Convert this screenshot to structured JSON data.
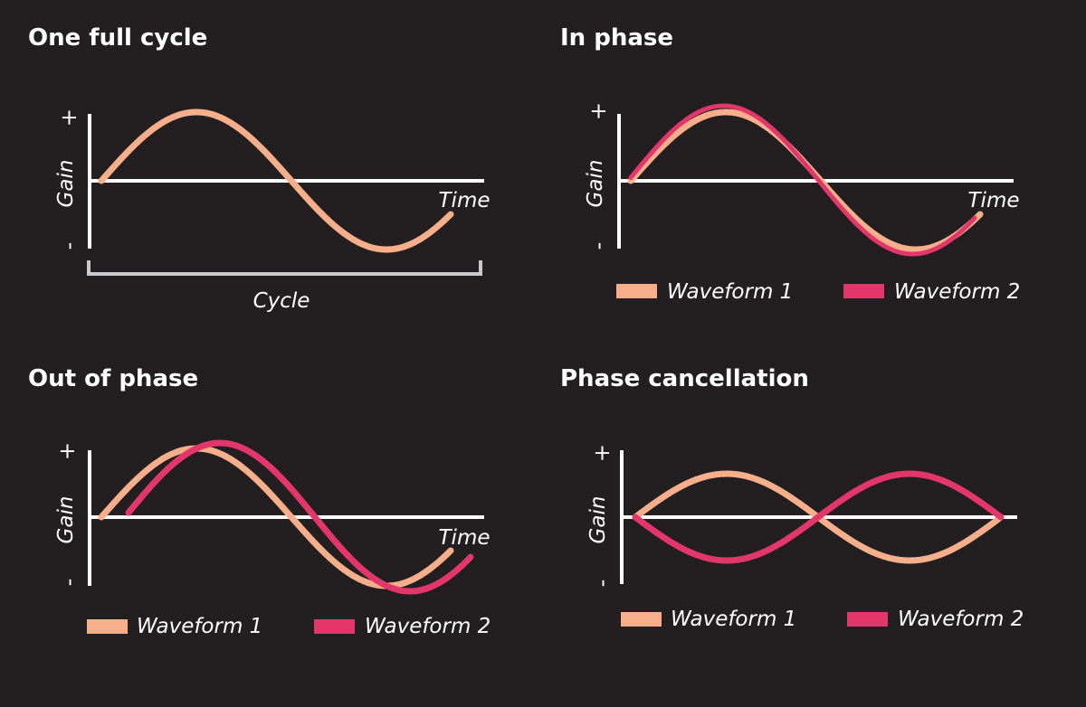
{
  "colors": {
    "background": "#231f20",
    "axis": "#ffffff",
    "bracket": "#c9cace",
    "waveform_1": "#f7ae8b",
    "waveform_2": "#e3366a"
  },
  "panels": [
    {
      "title": "One full cycle",
      "y_axis_label": "Gain",
      "y_plus": "+",
      "y_minus": "-",
      "x_axis_label": "Time",
      "bracket_label": "Cycle",
      "legend": []
    },
    {
      "title": "In phase",
      "y_axis_label": "Gain",
      "y_plus": "+",
      "y_minus": "-",
      "x_axis_label": "Time",
      "legend": [
        {
          "label": "Waveform 1"
        },
        {
          "label": "Waveform 2"
        }
      ]
    },
    {
      "title": "Out of phase",
      "y_axis_label": "Gain",
      "y_plus": "+",
      "y_minus": "-",
      "x_axis_label": "Time",
      "legend": [
        {
          "label": "Waveform 1"
        },
        {
          "label": "Waveform 2"
        }
      ]
    },
    {
      "title": "Phase cancellation",
      "y_axis_label": "Gain",
      "y_plus": "+",
      "y_minus": "-",
      "x_axis_label": "",
      "legend": [
        {
          "label": "Waveform 1"
        },
        {
          "label": "Waveform 2"
        }
      ]
    }
  ]
}
